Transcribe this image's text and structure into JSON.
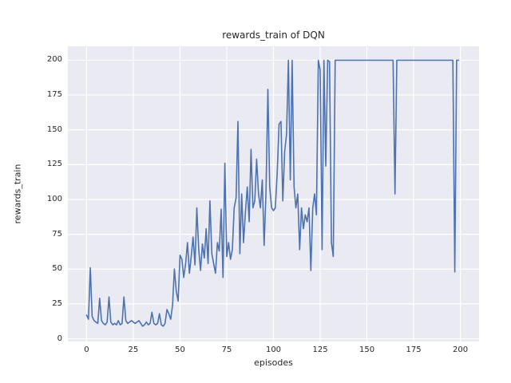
{
  "figure": {
    "title": "rewards_train of DQN",
    "xlabel": "episodes",
    "ylabel": "rewards_train"
  },
  "chart_data": {
    "type": "line",
    "title": "rewards_train of DQN",
    "xlabel": "episodes",
    "ylabel": "rewards_train",
    "legend": "none",
    "grid": true,
    "style": "seaborn-darkgrid",
    "line_color": "#4c72b0",
    "axes_bg": "#eaeaf2",
    "grid_color": "#ffffff",
    "text_color": "#262626",
    "x_start": 0,
    "x_step": 1,
    "xlim": [
      -10,
      210
    ],
    "ylim": [
      -2,
      210
    ],
    "xticks": [
      0,
      25,
      50,
      75,
      100,
      125,
      150,
      175,
      200
    ],
    "yticks": [
      0,
      25,
      50,
      75,
      100,
      125,
      150,
      175,
      200
    ],
    "values": [
      17,
      14,
      51,
      16,
      13,
      12,
      11,
      29,
      13,
      11,
      10,
      12,
      30,
      12,
      10,
      11,
      10,
      13,
      10,
      11,
      30,
      13,
      11,
      12,
      13,
      12,
      11,
      12,
      13,
      11,
      9,
      10,
      12,
      10,
      11,
      19,
      11,
      10,
      11,
      18,
      10,
      9,
      11,
      21,
      18,
      14,
      24,
      50,
      34,
      27,
      60,
      57,
      44,
      54,
      69,
      47,
      59,
      73,
      53,
      94,
      64,
      49,
      68,
      58,
      79,
      54,
      99,
      61,
      54,
      47,
      69,
      63,
      93,
      44,
      126,
      59,
      69,
      57,
      64,
      94,
      101,
      156,
      61,
      104,
      69,
      91,
      109,
      84,
      136,
      94,
      99,
      129,
      104,
      94,
      114,
      67,
      104,
      179,
      109,
      94,
      92,
      94,
      119,
      154,
      156,
      99,
      134,
      147,
      200,
      114,
      200,
      109,
      94,
      104,
      64,
      94,
      79,
      89,
      84,
      94,
      49,
      94,
      104,
      89,
      200,
      193,
      64,
      200,
      124,
      200,
      199,
      69,
      59,
      200,
      200,
      200,
      200,
      200,
      200,
      200,
      200,
      200,
      200,
      200,
      200,
      200,
      200,
      200,
      200,
      200,
      200,
      200,
      200,
      200,
      200,
      200,
      200,
      200,
      200,
      200,
      200,
      200,
      200,
      200,
      200,
      104,
      200,
      200,
      200,
      200,
      200,
      200,
      200,
      200,
      200,
      200,
      200,
      200,
      200,
      200,
      200,
      200,
      200,
      200,
      200,
      200,
      200,
      200,
      200,
      200,
      200,
      200,
      200,
      200,
      200,
      200,
      200,
      48,
      200,
      200
    ]
  }
}
